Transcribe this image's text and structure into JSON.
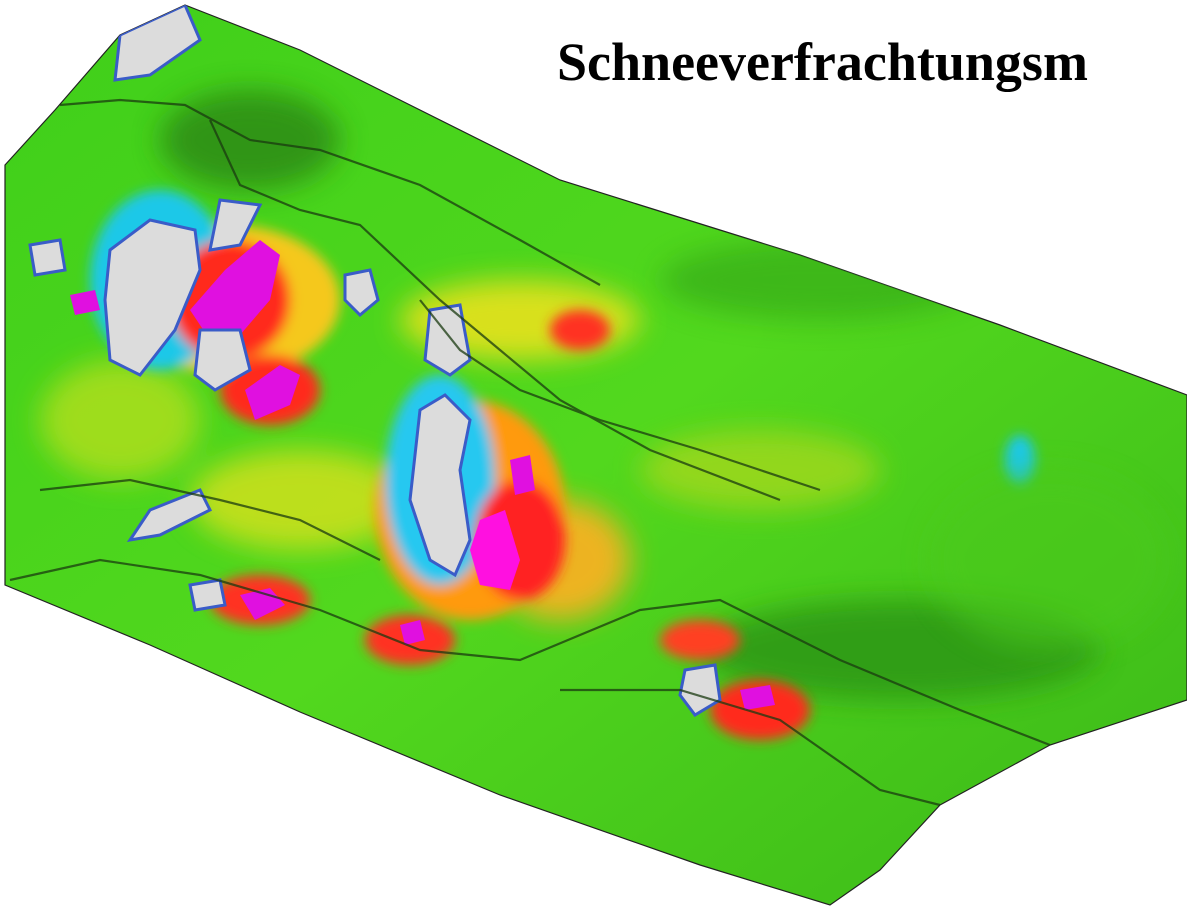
{
  "title": "Schneeverfrachtungsm"
}
